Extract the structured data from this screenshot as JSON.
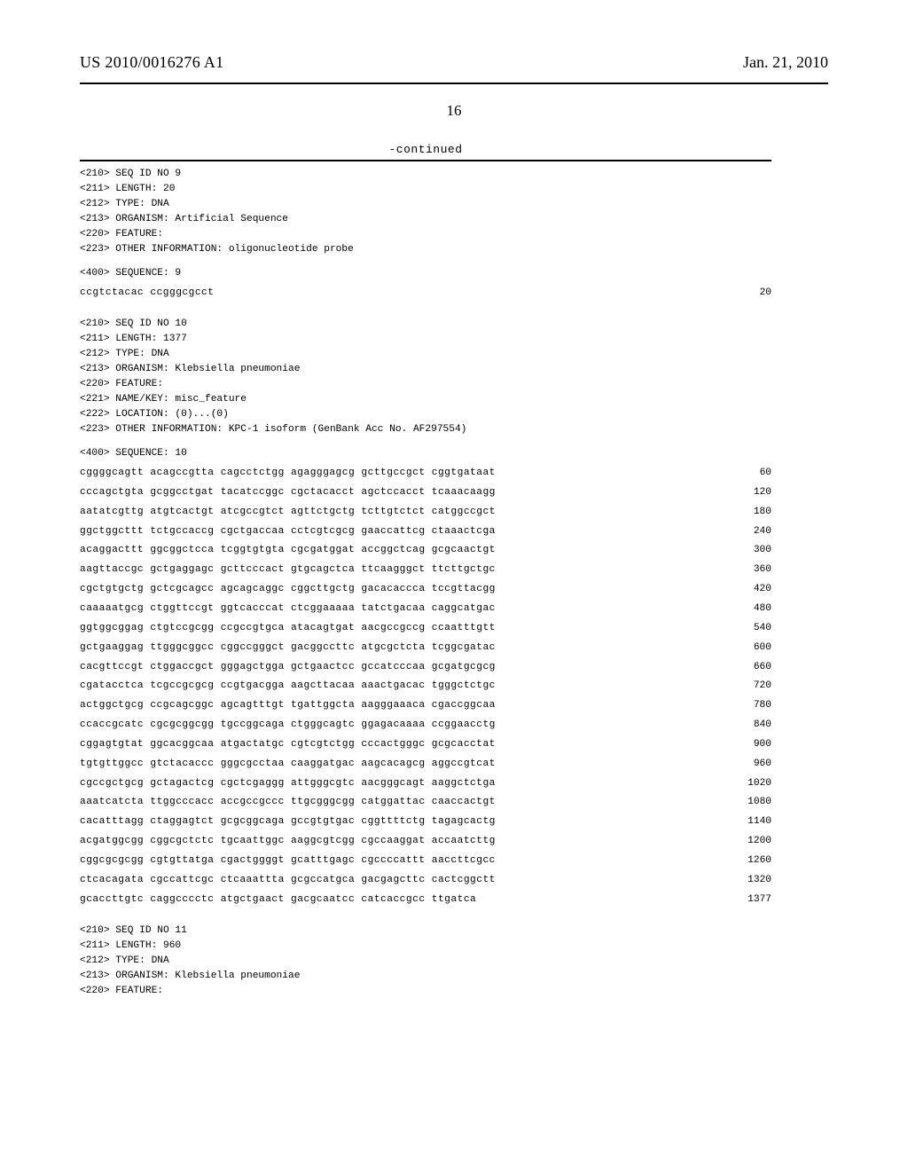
{
  "header": {
    "pub_number": "US 2010/0016276 A1",
    "pub_date": "Jan. 21, 2010"
  },
  "page_number": "16",
  "continued_label": "-continued",
  "seq9": {
    "headers": [
      "<210> SEQ ID NO 9",
      "<211> LENGTH: 20",
      "<212> TYPE: DNA",
      "<213> ORGANISM: Artificial Sequence",
      "<220> FEATURE:",
      "<223> OTHER INFORMATION: oligonucleotide probe"
    ],
    "sequence_label": "<400> SEQUENCE: 9",
    "lines": [
      {
        "text": "ccgtctacac ccgggcgcct",
        "pos": "20"
      }
    ]
  },
  "seq10": {
    "headers": [
      "<210> SEQ ID NO 10",
      "<211> LENGTH: 1377",
      "<212> TYPE: DNA",
      "<213> ORGANISM: Klebsiella pneumoniae",
      "<220> FEATURE:",
      "<221> NAME/KEY: misc_feature",
      "<222> LOCATION: (0)...(0)",
      "<223> OTHER INFORMATION: KPC-1 isoform (GenBank Acc No. AF297554)"
    ],
    "sequence_label": "<400> SEQUENCE: 10",
    "lines": [
      {
        "text": "cggggcagtt acagccgtta cagcctctgg agagggagcg gcttgccgct cggtgataat",
        "pos": "60"
      },
      {
        "text": "cccagctgta gcggcctgat tacatccggc cgctacacct agctccacct tcaaacaagg",
        "pos": "120"
      },
      {
        "text": "aatatcgttg atgtcactgt atcgccgtct agttctgctg tcttgtctct catggccgct",
        "pos": "180"
      },
      {
        "text": "ggctggcttt tctgccaccg cgctgaccaa cctcgtcgcg gaaccattcg ctaaactcga",
        "pos": "240"
      },
      {
        "text": "acaggacttt ggcggctcca tcggtgtgta cgcgatggat accggctcag gcgcaactgt",
        "pos": "300"
      },
      {
        "text": "aagttaccgc gctgaggagc gcttcccact gtgcagctca ttcaagggct ttcttgctgc",
        "pos": "360"
      },
      {
        "text": "cgctgtgctg gctcgcagcc agcagcaggc cggcttgctg gacacaccca tccgttacgg",
        "pos": "420"
      },
      {
        "text": "caaaaatgcg ctggttccgt ggtcacccat ctcggaaaaa tatctgacaa caggcatgac",
        "pos": "480"
      },
      {
        "text": "ggtggcggag ctgtccgcgg ccgccgtgca atacagtgat aacgccgccg ccaatttgtt",
        "pos": "540"
      },
      {
        "text": "gctgaaggag ttgggcggcc cggccgggct gacggccttc atgcgctcta tcggcgatac",
        "pos": "600"
      },
      {
        "text": "cacgttccgt ctggaccgct gggagctgga gctgaactcc gccatcccaa gcgatgcgcg",
        "pos": "660"
      },
      {
        "text": "cgatacctca tcgccgcgcg ccgtgacgga aagcttacaa aaactgacac tgggctctgc",
        "pos": "720"
      },
      {
        "text": "actggctgcg ccgcagcggc agcagtttgt tgattggcta aagggaaaca cgaccggcaa",
        "pos": "780"
      },
      {
        "text": "ccaccgcatc cgcgcggcgg tgccggcaga ctgggcagtc ggagacaaaa ccggaacctg",
        "pos": "840"
      },
      {
        "text": "cggagtgtat ggcacggcaa atgactatgc cgtcgtctgg cccactgggc gcgcacctat",
        "pos": "900"
      },
      {
        "text": "tgtgttggcc gtctacaccc gggcgcctaa caaggatgac aagcacagcg aggccgtcat",
        "pos": "960"
      },
      {
        "text": "cgccgctgcg gctagactcg cgctcgaggg attgggcgtc aacgggcagt aaggctctga",
        "pos": "1020"
      },
      {
        "text": "aaatcatcta ttggcccacc accgccgccc ttgcgggcgg catggattac caaccactgt",
        "pos": "1080"
      },
      {
        "text": "cacatttagg ctaggagtct gcgcggcaga gccgtgtgac cggttttctg tagagcactg",
        "pos": "1140"
      },
      {
        "text": "acgatggcgg cggcgctctc tgcaattggc aaggcgtcgg cgccaaggat accaatcttg",
        "pos": "1200"
      },
      {
        "text": "cggcgcgcgg cgtgttatga cgactggggt gcatttgagc cgccccattt aaccttcgcc",
        "pos": "1260"
      },
      {
        "text": "ctcacagata cgccattcgc ctcaaattta gcgccatgca gacgagcttc cactcggctt",
        "pos": "1320"
      },
      {
        "text": "gcaccttgtc caggcccctc atgctgaact gacgcaatcc catcaccgcc ttgatca",
        "pos": "1377"
      }
    ]
  },
  "seq11": {
    "headers": [
      "<210> SEQ ID NO 11",
      "<211> LENGTH: 960",
      "<212> TYPE: DNA",
      "<213> ORGANISM: Klebsiella pneumoniae",
      "<220> FEATURE:"
    ]
  },
  "colors": {
    "text": "#000000",
    "background": "#ffffff",
    "rule": "#000000"
  },
  "fonts": {
    "header_family": "Times New Roman",
    "mono_family": "Courier New",
    "header_size_pt": 13,
    "mono_size_pt": 8.5
  }
}
